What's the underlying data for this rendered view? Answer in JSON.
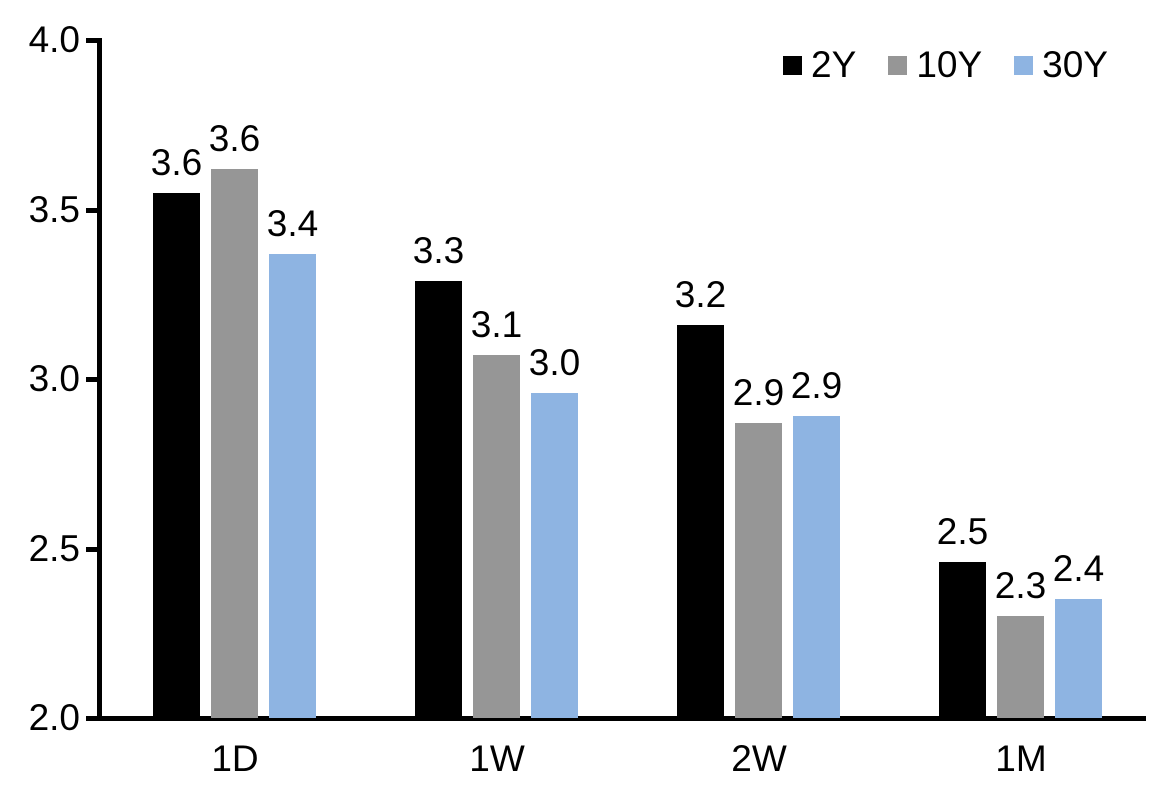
{
  "chart_data": {
    "type": "bar",
    "title": "",
    "xlabel": "",
    "ylabel": "",
    "categories": [
      "1D",
      "1W",
      "2W",
      "1M"
    ],
    "series": [
      {
        "name": "2Y",
        "color": "#000000",
        "values": [
          3.6,
          3.3,
          3.2,
          2.5
        ],
        "plotted": [
          3.55,
          3.29,
          3.16,
          2.46
        ],
        "labels": [
          "3.6",
          "3.3",
          "3.2",
          "2.5"
        ]
      },
      {
        "name": "10Y",
        "color": "#969696",
        "values": [
          3.6,
          3.1,
          2.9,
          2.3
        ],
        "plotted": [
          3.62,
          3.07,
          2.87,
          2.3
        ],
        "labels": [
          "3.6",
          "3.1",
          "2.9",
          "2.3"
        ]
      },
      {
        "name": "30Y",
        "color": "#8EB4E2",
        "values": [
          3.4,
          3.0,
          2.9,
          2.4
        ],
        "plotted": [
          3.37,
          2.96,
          2.89,
          2.35
        ],
        "labels": [
          "3.4",
          "3.0",
          "2.9",
          "2.4"
        ]
      }
    ],
    "ylim": [
      2.0,
      4.0
    ],
    "yticks": [
      "4.0",
      "3.5",
      "3.0",
      "2.5",
      "2.0"
    ],
    "ytick_values": [
      4.0,
      3.5,
      3.0,
      2.5,
      2.0
    ],
    "grid": false,
    "legend_position": "top-right"
  },
  "colors": {
    "axis": "#000000",
    "text": "#000000",
    "background": "#FFFFFF",
    "series_2y": "#000000",
    "series_10y": "#969696",
    "series_30y": "#8EB4E2"
  }
}
